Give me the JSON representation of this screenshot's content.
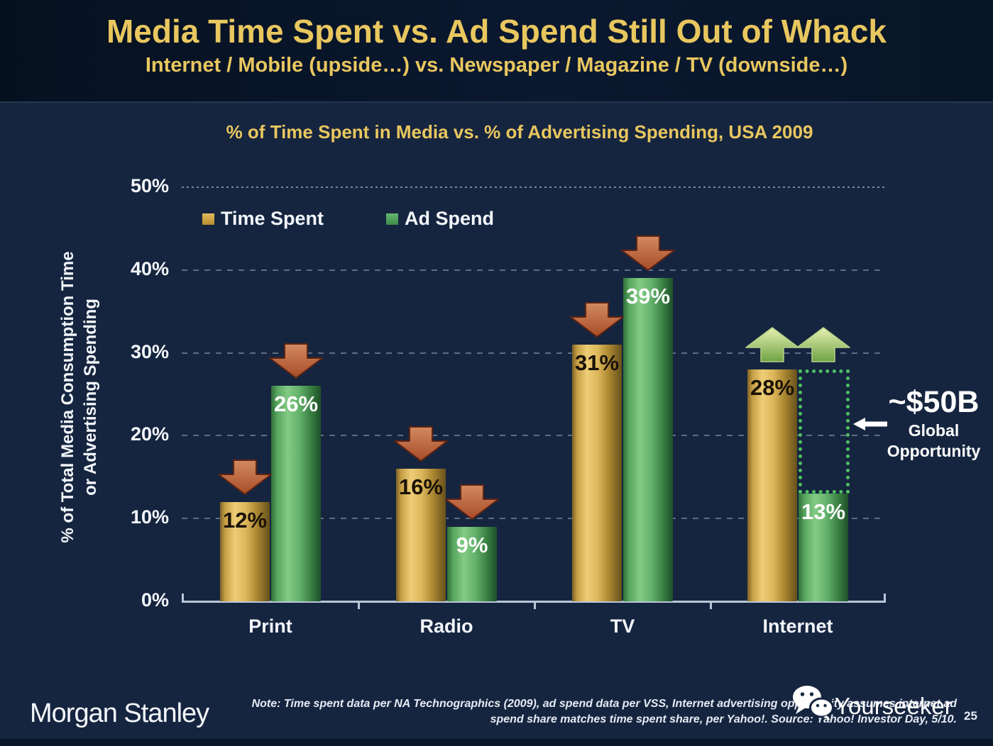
{
  "header": {
    "title": "Media Time Spent vs. Ad Spend Still Out of Whack",
    "subtitle": "Internet / Mobile (upside…) vs. Newspaper / Magazine / TV (downside…)"
  },
  "chart_data": {
    "type": "bar",
    "title": "% of Time Spent in Media vs. % of Advertising Spending, USA 2009",
    "categories": [
      "Print",
      "Radio",
      "TV",
      "Internet"
    ],
    "series": [
      {
        "name": "Time Spent",
        "values": [
          12,
          16,
          31,
          28
        ],
        "color": "#d2a43c",
        "label_color": "#1a1206"
      },
      {
        "name": "Ad Spend",
        "values": [
          26,
          9,
          39,
          13
        ],
        "color": "#4ea45a",
        "label_color": "#ffffff"
      }
    ],
    "value_suffix": "%",
    "ylabel_line1": "% of Total Media Consumption Time",
    "ylabel_line2": "or Advertising Spending",
    "ylim": [
      0,
      50
    ],
    "yticks": [
      "0%",
      "10%",
      "20%",
      "30%",
      "40%",
      "50%"
    ],
    "ytick_step": 10,
    "grid": "horizontal-dashed",
    "legend_position": "top-left",
    "category_arrows": [
      "down",
      "down",
      "down",
      "up"
    ],
    "opportunity_gap": {
      "category": "Internet",
      "from_value": 28,
      "to_value": 13
    }
  },
  "annotation": {
    "value": "~$50B",
    "caption_line1": "Global",
    "caption_line2": "Opportunity"
  },
  "footer": {
    "logo": "Morgan Stanley",
    "note_line1": "Note: Time spent data per NA Technographics (2009), ad spend data per VSS, Internet advertising opportunity assumes internet ad",
    "note_line2": "spend share matches time spent share, per Yahoo!. Source: Yahoo! Investor Day, 5/10.",
    "watermark": "Yourseeker",
    "page_number": "25"
  },
  "colors": {
    "background": "#16253f",
    "header_background": "#0a1830",
    "title_gold": "#e9c75f",
    "bar_gold": "#d2a43c",
    "bar_green": "#4ea45a",
    "arrow_down": "#b8592f",
    "arrow_up": "#9dc065",
    "opportunity_dotted": "#4ec263",
    "axis": "#bac7d9",
    "text": "#f3f6fb"
  }
}
